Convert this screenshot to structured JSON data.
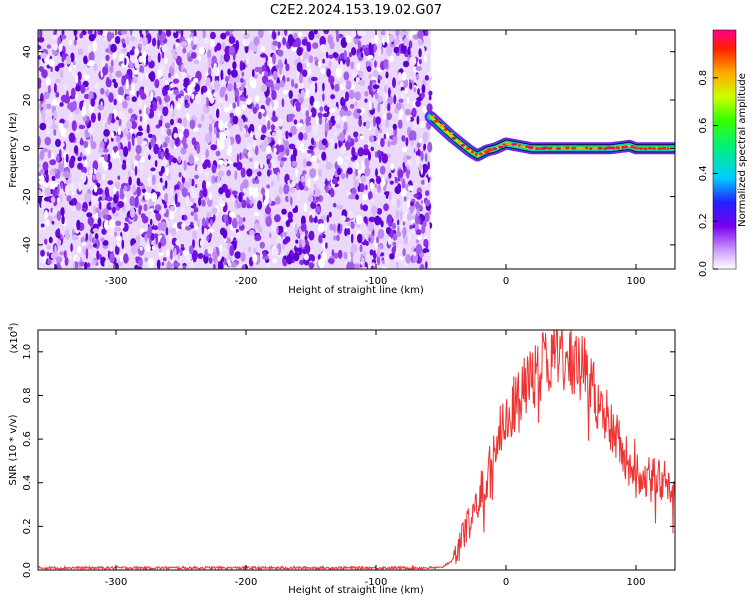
{
  "title": "C2E2.2024.153.19.02.G07",
  "colorbar": {
    "label": "Normalized spectral amplitude",
    "ticks": [
      "0.0",
      "0.2",
      "0.4",
      "0.6",
      "0.8"
    ],
    "range": [
      0,
      1
    ]
  },
  "chart_data": [
    {
      "type": "heatmap",
      "xlabel": "Height of straight line (km)",
      "ylabel": "Frequency (Hz)",
      "xlim": [
        -360,
        130
      ],
      "ylim": [
        -50,
        49
      ],
      "x_ticks": [
        "-300",
        "-200",
        "-100",
        "0",
        "100"
      ],
      "y_ticks": [
        "-40",
        "-20",
        "0",
        "20",
        "40"
      ],
      "noise_region": {
        "x_range": [
          -360,
          -58
        ],
        "typical_amplitude": 0.1
      },
      "signal_ridge": {
        "x": [
          -58,
          -50,
          -42,
          -35,
          -28,
          -22,
          -15,
          -8,
          0,
          10,
          20,
          40,
          60,
          80,
          95,
          100,
          130
        ],
        "frequency": [
          13,
          9,
          5,
          2,
          -1,
          -3,
          -1,
          0,
          2,
          1,
          0,
          0,
          0,
          0,
          1,
          0,
          0
        ],
        "amplitude": [
          0.9,
          0.85,
          0.9,
          0.8,
          0.95,
          0.9,
          0.85,
          0.9,
          0.95,
          0.95,
          0.9,
          0.95,
          0.95,
          0.95,
          0.95,
          0.95,
          0.95
        ]
      }
    },
    {
      "type": "line",
      "xlabel": "Height of straight line (km)",
      "ylabel": "SNR (10 * v/v)",
      "yscale_label": "(x10",
      "yscale_exp": "4",
      "yscale_close": ")",
      "xlim": [
        -360,
        130
      ],
      "ylim": [
        0,
        1.1
      ],
      "x_ticks": [
        "-300",
        "-200",
        "-100",
        "0",
        "100"
      ],
      "y_ticks": [
        "0.0",
        "0.2",
        "0.4",
        "0.6",
        "0.8",
        "1.0"
      ],
      "series": [
        {
          "color": "#ee3333",
          "x": [
            -360,
            -300,
            -200,
            -100,
            -50,
            -40,
            -35,
            -30,
            -25,
            -20,
            -15,
            -10,
            -5,
            0,
            5,
            10,
            15,
            20,
            25,
            30,
            35,
            40,
            45,
            50,
            55,
            60,
            65,
            70,
            75,
            80,
            85,
            90,
            95,
            100,
            105,
            110,
            115,
            120,
            125,
            130
          ],
          "y": [
            0.01,
            0.01,
            0.01,
            0.01,
            0.01,
            0.05,
            0.14,
            0.2,
            0.24,
            0.32,
            0.42,
            0.55,
            0.62,
            0.7,
            0.76,
            0.8,
            0.84,
            0.88,
            0.92,
            0.95,
            0.97,
            0.97,
            0.96,
            0.95,
            0.94,
            0.92,
            0.86,
            0.8,
            0.74,
            0.66,
            0.6,
            0.54,
            0.48,
            0.45,
            0.44,
            0.43,
            0.42,
            0.41,
            0.39,
            0.36
          ]
        }
      ]
    }
  ]
}
